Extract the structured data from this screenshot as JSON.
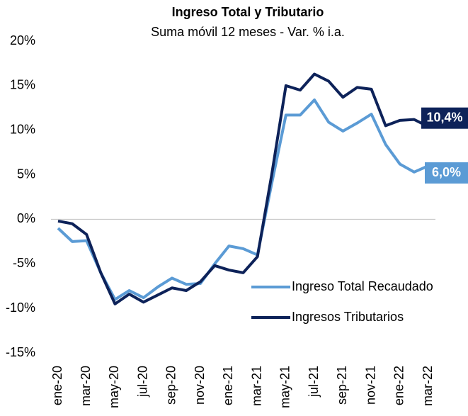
{
  "chart_data": {
    "type": "line",
    "title": "Ingreso Total y Tributario",
    "subtitle": "Suma móvil 12 meses - Var. % i.a.",
    "categories": [
      "ene-20",
      null,
      "mar-20",
      null,
      "may-20",
      null,
      "jul-20",
      null,
      "sep-20",
      null,
      "nov-20",
      null,
      "ene-21",
      null,
      "mar-21",
      null,
      "may-21",
      null,
      "jul-21",
      null,
      "sep-21",
      null,
      "nov-21",
      null,
      "ene-22",
      null,
      "mar-22"
    ],
    "series": [
      {
        "name": "Ingreso Total Recaudado",
        "color": "#5b9bd5",
        "values": [
          -1,
          -2.5,
          -2.4,
          -6,
          -9,
          -8,
          -8.8,
          -7.6,
          -6.6,
          -7.3,
          -7.2,
          -5,
          -3,
          -3.3,
          -4,
          4,
          11.7,
          11.7,
          13.4,
          10.9,
          9.9,
          10.8,
          11.8,
          8.4,
          6.2,
          5.3,
          6.0
        ],
        "value_labels": [
          null,
          null,
          null,
          null,
          null,
          null,
          null,
          null,
          null,
          null,
          null,
          null,
          null,
          null,
          null,
          null,
          null,
          null,
          null,
          null,
          null,
          null,
          null,
          null,
          null,
          null,
          "6,0%"
        ]
      },
      {
        "name": "Ingresos Tributarios",
        "color": "#0d2259",
        "values": [
          -0.2,
          -0.5,
          -1.7,
          -6,
          -9.5,
          -8.4,
          -9.3,
          -8.5,
          -7.7,
          -8,
          -7,
          -5.2,
          -5.7,
          -6,
          -4.2,
          5,
          15,
          14.5,
          16.3,
          15.5,
          13.7,
          14.8,
          14.6,
          10.5,
          11.1,
          11.2,
          10.4
        ],
        "value_labels": [
          null,
          null,
          null,
          null,
          null,
          null,
          null,
          null,
          null,
          null,
          null,
          null,
          null,
          null,
          null,
          null,
          null,
          null,
          null,
          null,
          null,
          null,
          null,
          null,
          null,
          null,
          "10,4%"
        ]
      }
    ],
    "ylim": [
      -15,
      20
    ],
    "yticks": [
      {
        "value": -15,
        "label": "-15%"
      },
      {
        "value": -10,
        "label": "-10%"
      },
      {
        "value": -5,
        "label": "-5%"
      },
      {
        "value": 0,
        "label": "0%"
      },
      {
        "value": 5,
        "label": "5%"
      },
      {
        "value": 10,
        "label": "10%"
      },
      {
        "value": 15,
        "label": "15%"
      },
      {
        "value": 20,
        "label": "20%"
      }
    ],
    "grid": false,
    "legend": "lower-right"
  }
}
